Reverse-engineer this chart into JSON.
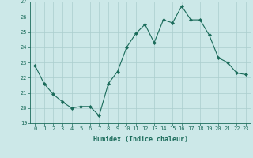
{
  "x": [
    0,
    1,
    2,
    3,
    4,
    5,
    6,
    7,
    8,
    9,
    10,
    11,
    12,
    13,
    14,
    15,
    16,
    17,
    18,
    19,
    20,
    21,
    22,
    23
  ],
  "y": [
    22.8,
    21.6,
    20.9,
    20.4,
    20.0,
    20.1,
    20.1,
    19.5,
    21.6,
    22.4,
    24.0,
    24.9,
    25.5,
    24.3,
    25.8,
    25.6,
    26.7,
    25.8,
    25.8,
    24.8,
    23.3,
    23.0,
    22.3,
    22.2
  ],
  "xlabel": "Humidex (Indice chaleur)",
  "ylim": [
    19,
    27
  ],
  "yticks": [
    19,
    20,
    21,
    22,
    23,
    24,
    25,
    26,
    27
  ],
  "xticks": [
    0,
    1,
    2,
    3,
    4,
    5,
    6,
    7,
    8,
    9,
    10,
    11,
    12,
    13,
    14,
    15,
    16,
    17,
    18,
    19,
    20,
    21,
    22,
    23
  ],
  "line_color": "#1a6b5a",
  "marker_color": "#1a6b5a",
  "bg_color": "#cce8e8",
  "grid_color": "#aacece",
  "xlabel_fontsize": 6.0,
  "tick_fontsize": 5.0,
  "figsize": [
    3.2,
    2.0
  ],
  "dpi": 100
}
